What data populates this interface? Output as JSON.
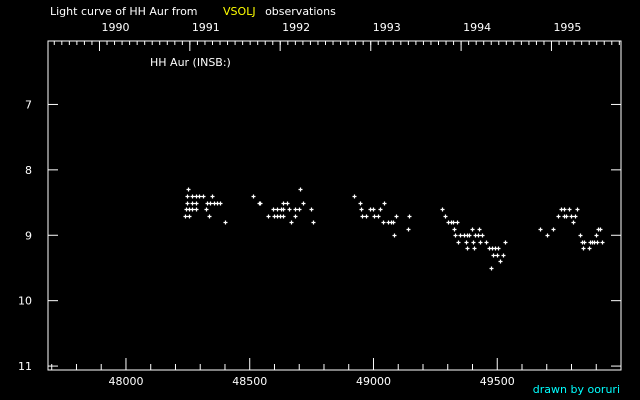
{
  "chart_data": {
    "type": "scatter",
    "title_parts": [
      "Light curve of HH Aur from",
      "VSOLJ",
      "observations"
    ],
    "plot_label": "HH Aur (INSB:)",
    "credit": "drawn by ooruri",
    "xlim": [
      47685,
      50000
    ],
    "ylim": [
      11.06,
      6.03
    ],
    "y_inverted": true,
    "x_ticks": [
      48000,
      48500,
      49000,
      49500
    ],
    "x_tick_labels": [
      "48000",
      "48500",
      "49000",
      "49500"
    ],
    "y_ticks": [
      7,
      8,
      9,
      10,
      11
    ],
    "y_tick_labels": [
      "7",
      "8",
      "9",
      "10",
      "11"
    ],
    "top_axis": {
      "years": [
        {
          "label": "1990",
          "jd": 47893
        },
        {
          "label": "1991",
          "jd": 48258
        },
        {
          "label": "1992",
          "jd": 48623
        },
        {
          "label": "1993",
          "jd": 48989
        },
        {
          "label": "1994",
          "jd": 49354
        },
        {
          "label": "1995",
          "jd": 49719
        }
      ]
    },
    "grid": false,
    "marker": "plus",
    "colors": {
      "background": "#000000",
      "axes": "#ffffff",
      "points": "#ffffff",
      "highlight": "#ffff00",
      "credit": "#00ffff"
    },
    "points": [
      [
        48250,
        8.3
      ],
      [
        48703,
        8.3
      ],
      [
        48246,
        8.4
      ],
      [
        48266,
        8.4
      ],
      [
        48283,
        8.4
      ],
      [
        48295,
        8.4
      ],
      [
        48311,
        8.4
      ],
      [
        48347,
        8.4
      ],
      [
        48513,
        8.4
      ],
      [
        48248,
        8.5
      ],
      [
        48265,
        8.5
      ],
      [
        48281,
        8.5
      ],
      [
        48326,
        8.5
      ],
      [
        48339,
        8.5
      ],
      [
        48357,
        8.5
      ],
      [
        48369,
        8.5
      ],
      [
        48381,
        8.5
      ],
      [
        48536,
        8.5
      ],
      [
        48541,
        8.5
      ],
      [
        48635,
        8.5
      ],
      [
        48651,
        8.5
      ],
      [
        48716,
        8.5
      ],
      [
        48242,
        8.6
      ],
      [
        48253,
        8.6
      ],
      [
        48265,
        8.6
      ],
      [
        48284,
        8.6
      ],
      [
        48324,
        8.6
      ],
      [
        48595,
        8.6
      ],
      [
        48609,
        8.6
      ],
      [
        48625,
        8.6
      ],
      [
        48635,
        8.6
      ],
      [
        48658,
        8.6
      ],
      [
        48683,
        8.6
      ],
      [
        48700,
        8.6
      ],
      [
        48746,
        8.6
      ],
      [
        48240,
        8.7
      ],
      [
        48256,
        8.7
      ],
      [
        48336,
        8.7
      ],
      [
        48575,
        8.7
      ],
      [
        48599,
        8.7
      ],
      [
        48611,
        8.7
      ],
      [
        48622,
        8.7
      ],
      [
        48635,
        8.7
      ],
      [
        48683,
        8.7
      ],
      [
        48401,
        8.8
      ],
      [
        48668,
        8.8
      ],
      [
        48754,
        8.8
      ],
      [
        48922,
        8.4
      ],
      [
        48946,
        8.5
      ],
      [
        49043,
        8.5
      ],
      [
        48950,
        8.6
      ],
      [
        48987,
        8.6
      ],
      [
        48999,
        8.6
      ],
      [
        49026,
        8.6
      ],
      [
        49277,
        8.6
      ],
      [
        48954,
        8.7
      ],
      [
        48970,
        8.7
      ],
      [
        49003,
        8.7
      ],
      [
        49019,
        8.7
      ],
      [
        49092,
        8.7
      ],
      [
        49144,
        8.7
      ],
      [
        49290,
        8.7
      ],
      [
        49039,
        8.8
      ],
      [
        49059,
        8.8
      ],
      [
        49069,
        8.8
      ],
      [
        49080,
        8.8
      ],
      [
        49302,
        8.8
      ],
      [
        49312,
        8.8
      ],
      [
        49322,
        8.8
      ],
      [
        49338,
        8.8
      ],
      [
        49140,
        8.9
      ],
      [
        49326,
        8.9
      ],
      [
        49396,
        8.9
      ],
      [
        49427,
        8.9
      ],
      [
        49084,
        9.0
      ],
      [
        49330,
        9.0
      ],
      [
        49350,
        9.0
      ],
      [
        49366,
        9.0
      ],
      [
        49376,
        9.0
      ],
      [
        49386,
        9.0
      ],
      [
        49410,
        9.0
      ],
      [
        49424,
        9.0
      ],
      [
        49440,
        9.0
      ],
      [
        49342,
        9.1
      ],
      [
        49374,
        9.1
      ],
      [
        49402,
        9.1
      ],
      [
        49431,
        9.1
      ],
      [
        49455,
        9.1
      ],
      [
        49532,
        9.1
      ],
      [
        49378,
        9.2
      ],
      [
        49406,
        9.2
      ],
      [
        49467,
        9.2
      ],
      [
        49478,
        9.2
      ],
      [
        49489,
        9.2
      ],
      [
        49504,
        9.2
      ],
      [
        49483,
        9.3
      ],
      [
        49499,
        9.3
      ],
      [
        49523,
        9.3
      ],
      [
        49512,
        9.4
      ],
      [
        49475,
        9.5
      ],
      [
        49758,
        8.6
      ],
      [
        49769,
        8.6
      ],
      [
        49790,
        8.6
      ],
      [
        49823,
        8.6
      ],
      [
        49746,
        8.7
      ],
      [
        49770,
        8.7
      ],
      [
        49778,
        8.7
      ],
      [
        49798,
        8.7
      ],
      [
        49815,
        8.7
      ],
      [
        49807,
        8.8
      ],
      [
        49673,
        8.9
      ],
      [
        49726,
        8.9
      ],
      [
        49909,
        8.9
      ],
      [
        49915,
        8.9
      ],
      [
        49702,
        9.0
      ],
      [
        49836,
        9.0
      ],
      [
        49899,
        9.0
      ],
      [
        49843,
        9.1
      ],
      [
        49851,
        9.1
      ],
      [
        49875,
        9.1
      ],
      [
        49883,
        9.1
      ],
      [
        49891,
        9.1
      ],
      [
        49904,
        9.1
      ],
      [
        49924,
        9.1
      ],
      [
        49847,
        9.2
      ],
      [
        49871,
        9.2
      ]
    ]
  }
}
